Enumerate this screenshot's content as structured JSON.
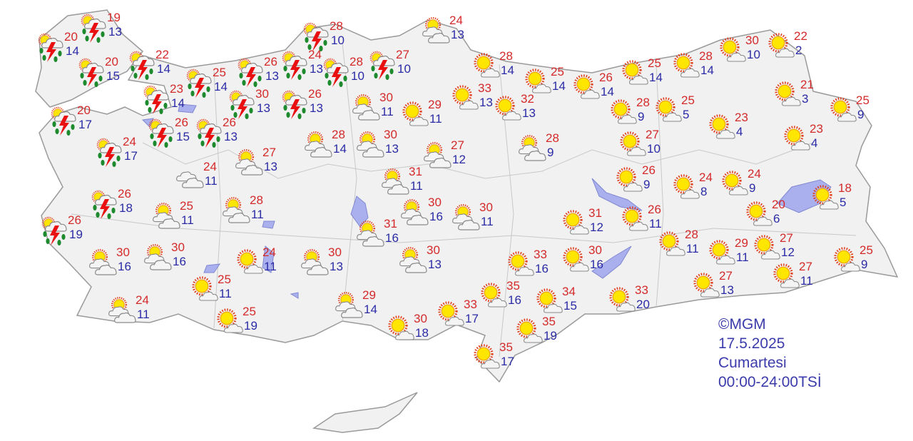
{
  "legend": {
    "copyright": "©MGM",
    "date": "17.5.2025",
    "day": "Cumartesi",
    "period": "00:00-24:00TSİ"
  },
  "colors": {
    "land": "#f1f1f1",
    "border": "#9a9a9a",
    "lake": "#aab0ee",
    "high": "#d42a2a",
    "low": "#2b2ba6"
  },
  "icon_types": {
    "storm": "thunderstorm-rain-icon",
    "partly": "partly-cloudy-icon",
    "sunny": "mostly-sunny-icon",
    "cloudy": "cloudy-icon"
  },
  "stations": [
    {
      "icon": "storm",
      "high": "19",
      "low": "13"
    },
    {
      "icon": "storm",
      "high": "20",
      "low": "14"
    },
    {
      "icon": "storm",
      "high": "20",
      "low": "15"
    },
    {
      "icon": "storm",
      "high": "22",
      "low": "14"
    },
    {
      "icon": "storm",
      "high": "25",
      "low": "14"
    },
    {
      "icon": "storm",
      "high": "23",
      "low": "14"
    },
    {
      "icon": "storm",
      "high": "26",
      "low": "13"
    },
    {
      "icon": "storm",
      "high": "24",
      "low": "13"
    },
    {
      "icon": "storm",
      "high": "28",
      "low": "10"
    },
    {
      "icon": "storm",
      "high": "28",
      "low": "10"
    },
    {
      "icon": "storm",
      "high": "27",
      "low": "10"
    },
    {
      "icon": "storm",
      "high": "30",
      "low": "13"
    },
    {
      "icon": "storm",
      "high": "26",
      "low": "13"
    },
    {
      "icon": "storm",
      "high": "20",
      "low": "17"
    },
    {
      "icon": "storm",
      "high": "26",
      "low": "15"
    },
    {
      "icon": "storm",
      "high": "26",
      "low": "13"
    },
    {
      "icon": "storm",
      "high": "24",
      "low": "17"
    },
    {
      "icon": "storm",
      "high": "26",
      "low": "18"
    },
    {
      "icon": "storm",
      "high": "26",
      "low": "19"
    },
    {
      "icon": "partly",
      "high": "24",
      "low": "13"
    },
    {
      "icon": "partly",
      "high": "30",
      "low": "11"
    },
    {
      "icon": "sunny",
      "high": "29",
      "low": "11"
    },
    {
      "icon": "sunny",
      "high": "33",
      "low": "13"
    },
    {
      "icon": "sunny",
      "high": "28",
      "low": "14"
    },
    {
      "icon": "sunny",
      "high": "32",
      "low": "13"
    },
    {
      "icon": "sunny",
      "high": "25",
      "low": "14"
    },
    {
      "icon": "sunny",
      "high": "26",
      "low": "14"
    },
    {
      "icon": "sunny",
      "high": "25",
      "low": "14"
    },
    {
      "icon": "sunny",
      "high": "28",
      "low": "14"
    },
    {
      "icon": "sunny",
      "high": "30",
      "low": "10"
    },
    {
      "icon": "sunny",
      "high": "22",
      "low": "2"
    },
    {
      "icon": "sunny",
      "high": "28",
      "low": "9"
    },
    {
      "icon": "sunny",
      "high": "25",
      "low": "5"
    },
    {
      "icon": "sunny",
      "high": "23",
      "low": "4"
    },
    {
      "icon": "sunny",
      "high": "21",
      "low": "3"
    },
    {
      "icon": "sunny",
      "high": "25",
      "low": "9"
    },
    {
      "icon": "sunny",
      "high": "23",
      "low": "4"
    },
    {
      "icon": "sunny",
      "high": "27",
      "low": "10"
    },
    {
      "icon": "partly",
      "high": "28",
      "low": "9"
    },
    {
      "icon": "partly",
      "high": "27",
      "low": "12"
    },
    {
      "icon": "partly",
      "high": "28",
      "low": "14"
    },
    {
      "icon": "partly",
      "high": "30",
      "low": "13"
    },
    {
      "icon": "partly",
      "high": "27",
      "low": "13"
    },
    {
      "icon": "cloudy",
      "high": "24",
      "low": "11"
    },
    {
      "icon": "partly",
      "high": "31",
      "low": "11"
    },
    {
      "icon": "partly",
      "high": "30",
      "low": "16"
    },
    {
      "icon": "partly",
      "high": "30",
      "low": "11"
    },
    {
      "icon": "partly",
      "high": "31",
      "low": "16"
    },
    {
      "icon": "partly",
      "high": "30",
      "low": "13"
    },
    {
      "icon": "partly",
      "high": "28",
      "low": "11"
    },
    {
      "icon": "partly",
      "high": "25",
      "low": "11"
    },
    {
      "icon": "partly",
      "high": "30",
      "low": "16"
    },
    {
      "icon": "partly",
      "high": "30",
      "low": "16"
    },
    {
      "icon": "sunny",
      "high": "24",
      "low": "11"
    },
    {
      "icon": "partly",
      "high": "30",
      "low": "13"
    },
    {
      "icon": "sunny",
      "high": "25",
      "low": "11"
    },
    {
      "icon": "partly",
      "high": "24",
      "low": "11"
    },
    {
      "icon": "sunny",
      "high": "25",
      "low": "19"
    },
    {
      "icon": "partly",
      "high": "29",
      "low": "14"
    },
    {
      "icon": "sunny",
      "high": "30",
      "low": "18"
    },
    {
      "icon": "sunny",
      "high": "33",
      "low": "17"
    },
    {
      "icon": "sunny",
      "high": "35",
      "low": "16"
    },
    {
      "icon": "sunny",
      "high": "35",
      "low": "17"
    },
    {
      "icon": "sunny",
      "high": "35",
      "low": "19"
    },
    {
      "icon": "sunny",
      "high": "34",
      "low": "15"
    },
    {
      "icon": "sunny",
      "high": "33",
      "low": "16"
    },
    {
      "icon": "sunny",
      "high": "31",
      "low": "12"
    },
    {
      "icon": "sunny",
      "high": "30",
      "low": "16"
    },
    {
      "icon": "sunny",
      "high": "33",
      "low": "20"
    },
    {
      "icon": "sunny",
      "high": "26",
      "low": "9"
    },
    {
      "icon": "sunny",
      "high": "26",
      "low": "11"
    },
    {
      "icon": "sunny",
      "high": "24",
      "low": "8"
    },
    {
      "icon": "sunny",
      "high": "24",
      "low": "9"
    },
    {
      "icon": "sunny",
      "high": "20",
      "low": "6"
    },
    {
      "icon": "sunny",
      "high": "18",
      "low": "5"
    },
    {
      "icon": "sunny",
      "high": "28",
      "low": "11"
    },
    {
      "icon": "sunny",
      "high": "29",
      "low": "11"
    },
    {
      "icon": "sunny",
      "high": "27",
      "low": "12"
    },
    {
      "icon": "sunny",
      "high": "25",
      "low": "9"
    },
    {
      "icon": "sunny",
      "high": "27",
      "low": "13"
    },
    {
      "icon": "sunny",
      "high": "27",
      "low": "11"
    }
  ]
}
